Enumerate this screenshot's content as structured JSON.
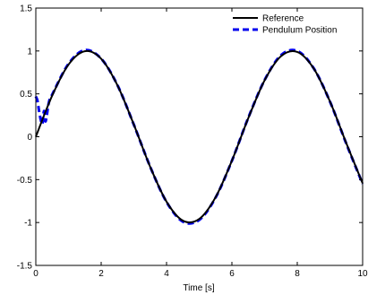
{
  "chart_data": {
    "type": "line",
    "title": "",
    "xlabel": "Time [s]",
    "ylabel": "",
    "xlim": [
      0,
      10
    ],
    "ylim": [
      -1.5,
      1.5
    ],
    "xticks": [
      0,
      2,
      4,
      6,
      8,
      10
    ],
    "xtick_labels": [
      "0",
      "2",
      "4",
      "6",
      "8",
      "10"
    ],
    "yticks": [
      -1.5,
      -1,
      -0.5,
      0,
      0.5,
      1,
      1.5
    ],
    "ytick_labels": [
      "-1.5",
      "-1",
      "-0.5",
      "0",
      "0.5",
      "1",
      "1.5"
    ],
    "grid": false,
    "legend": {
      "position": "top-right"
    },
    "series": [
      {
        "name": "Reference",
        "color": "#000000",
        "style": "solid",
        "x": [
          0,
          0.5,
          1,
          1.5,
          2,
          2.5,
          3,
          3.5,
          4,
          4.5,
          5,
          5.5,
          6,
          6.5,
          7,
          7.5,
          8,
          8.5,
          9,
          9.5,
          10
        ],
        "y": [
          0,
          0.479,
          0.841,
          0.997,
          0.909,
          0.598,
          0.141,
          -0.351,
          -0.757,
          -0.978,
          -0.959,
          -0.706,
          -0.279,
          0.215,
          0.657,
          0.938,
          0.989,
          0.798,
          0.412,
          -0.075,
          -0.544
        ]
      },
      {
        "name": "Pendulum Position",
        "color": "#0000ee",
        "style": "dashed",
        "x": [
          0,
          0.05,
          0.1,
          0.15,
          0.2,
          0.25,
          0.3,
          0.4,
          0.5,
          1,
          1.5,
          2,
          2.5,
          3,
          3.5,
          4,
          4.5,
          5,
          5.5,
          6,
          6.5,
          7,
          7.5,
          8,
          8.5,
          9,
          9.5,
          10
        ],
        "y": [
          0.47,
          0.42,
          0.3,
          0.2,
          0.15,
          0.3,
          0.18,
          0.4,
          0.49,
          0.85,
          1.01,
          0.91,
          0.6,
          0.14,
          -0.35,
          -0.76,
          -0.99,
          -0.97,
          -0.71,
          -0.28,
          0.22,
          0.66,
          0.95,
          1.0,
          0.8,
          0.41,
          -0.08,
          -0.55
        ]
      }
    ]
  }
}
